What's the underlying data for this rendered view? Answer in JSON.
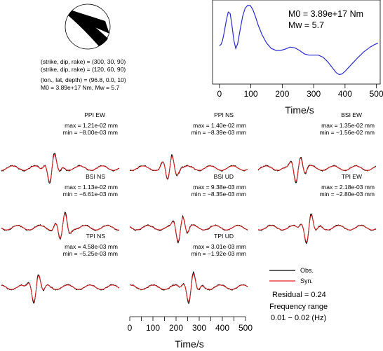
{
  "source_info": {
    "lines": [
      "(strike, dip, rake) = (300, 30, 90)",
      "(strike, dip, rake) = (120, 60, 90)",
      "(lon., lat, depth) = (96.8, 0.0, 10)",
      "M0 = 3.89e+17 Nm, Mw = 5.7"
    ]
  },
  "stf": {
    "m0_label": "M0 = 3.89e+17 Nm",
    "mw_label": "Mw = 5.7",
    "xlabel": "Time/s",
    "color": "#2a2ad0",
    "x_ticks": [
      0,
      100,
      200,
      300,
      400,
      500
    ],
    "xlim": [
      -22,
      512
    ],
    "ylim": [
      -0.15,
      1.1
    ],
    "points": [
      [
        0,
        0.42
      ],
      [
        5,
        0.44
      ],
      [
        10,
        0.5
      ],
      [
        15,
        0.62
      ],
      [
        22,
        0.8
      ],
      [
        28,
        0.92
      ],
      [
        34,
        0.9
      ],
      [
        40,
        0.72
      ],
      [
        46,
        0.5
      ],
      [
        52,
        0.38
      ],
      [
        58,
        0.45
      ],
      [
        66,
        0.66
      ],
      [
        74,
        0.86
      ],
      [
        82,
        0.98
      ],
      [
        90,
        1.02
      ],
      [
        98,
        1.02
      ],
      [
        106,
        0.96
      ],
      [
        114,
        0.86
      ],
      [
        124,
        0.72
      ],
      [
        136,
        0.58
      ],
      [
        150,
        0.46
      ],
      [
        165,
        0.38
      ],
      [
        180,
        0.35
      ],
      [
        195,
        0.35
      ],
      [
        210,
        0.37
      ],
      [
        225,
        0.4
      ],
      [
        240,
        0.39
      ],
      [
        255,
        0.35
      ],
      [
        270,
        0.3
      ],
      [
        285,
        0.28
      ],
      [
        300,
        0.28
      ],
      [
        315,
        0.28
      ],
      [
        330,
        0.25
      ],
      [
        345,
        0.18
      ],
      [
        360,
        0.09
      ],
      [
        372,
        0.02
      ],
      [
        382,
        -0.01
      ],
      [
        390,
        0.0
      ],
      [
        400,
        0.04
      ],
      [
        420,
        0.14
      ],
      [
        440,
        0.24
      ],
      [
        460,
        0.33
      ],
      [
        480,
        0.4
      ],
      [
        495,
        0.44
      ],
      [
        505,
        0.46
      ]
    ]
  },
  "waveforms": {
    "stations": [
      {
        "label": "PPI EW",
        "max": "max = 1.21e-02 mm",
        "min": "min = −8.00e-03 mm",
        "seed": 11
      },
      {
        "label": "PPI NS",
        "max": "max = 1.40e-02 mm",
        "min": "min = −8.39e-03 mm",
        "seed": 23
      },
      {
        "label": "BSI EW",
        "max": "max = 1.35e-02 mm",
        "min": "min = −1.56e-02 mm",
        "seed": 37
      },
      {
        "label": "BSI NS",
        "max": "max = 1.13e-02 mm",
        "min": "min = −6.61e-03 mm",
        "seed": 41
      },
      {
        "label": "BSI UD",
        "max": "max = 9.38e-03 mm",
        "min": "min = −8.35e-03 mm",
        "seed": 53
      },
      {
        "label": "TPI EW",
        "max": "max = 2.18e-03 mm",
        "min": "min = −2.80e-03 mm",
        "seed": 67
      },
      {
        "label": "TPI NS",
        "max": "max = 4.58e-03 mm",
        "min": "min = −5.25e-03 mm",
        "seed": 71
      },
      {
        "label": "TPI UD",
        "max": "max = 3.01e-03 mm",
        "min": "min = −1.92e-03 mm",
        "seed": 83
      }
    ],
    "obs_color": "#000000",
    "syn_color": "#e02020",
    "time_ticks": [
      0,
      50,
      100,
      150,
      200,
      250,
      300,
      350,
      400,
      450,
      500
    ],
    "xlabel": "Time/s"
  },
  "legend": {
    "obs": "Obs.",
    "syn": "Syn."
  },
  "fit": {
    "residual": "Residual = 0.24",
    "freq_label": "Frequency range",
    "freq_value": "0.01 − 0.02 (Hz)"
  }
}
